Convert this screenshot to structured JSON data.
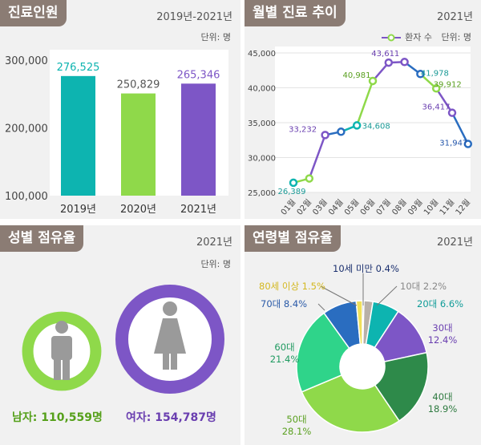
{
  "patients": {
    "title": "진료인원",
    "period": "2019년-2021년",
    "unit": "단위: 명",
    "chart_data": {
      "type": "bar",
      "categories": [
        "2019년",
        "2020년",
        "2021년"
      ],
      "values": [
        276525,
        250829,
        265346
      ],
      "value_labels": [
        "276,525",
        "250,829",
        "265,346"
      ],
      "colors": [
        "#0db4b0",
        "#8fd94a",
        "#7d56c6"
      ],
      "ylim": [
        100000,
        300000
      ],
      "yticks": [
        100000,
        200000,
        300000
      ],
      "ytick_labels": [
        "100,000",
        "200,000",
        "300,000"
      ]
    }
  },
  "monthly": {
    "title": "월별 진료 추이",
    "period": "2021년",
    "legend": "환자 수",
    "unit": "단위: 명",
    "chart_data": {
      "type": "line",
      "x": [
        "01월",
        "02월",
        "03월",
        "04월",
        "05월",
        "06월",
        "07월",
        "08월",
        "09월",
        "10월",
        "11월",
        "12월"
      ],
      "values": [
        26389,
        27000,
        33232,
        33700,
        34608,
        40981,
        43611,
        43700,
        41978,
        39912,
        36417,
        31947
      ],
      "data_labels": [
        {
          "i": 0,
          "text": "26,389",
          "color": "#1a9a96"
        },
        {
          "i": 2,
          "text": "33,232",
          "color": "#6a3fb0"
        },
        {
          "i": 4,
          "text": "34,608",
          "color": "#1a9a96"
        },
        {
          "i": 5,
          "text": "40,981",
          "color": "#5aa020"
        },
        {
          "i": 6,
          "text": "43,611",
          "color": "#6a3fb0"
        },
        {
          "i": 8,
          "text": "41,978",
          "color": "#1a9a96"
        },
        {
          "i": 9,
          "text": "39,912",
          "color": "#5aa020"
        },
        {
          "i": 10,
          "text": "36,417",
          "color": "#6a3fb0"
        },
        {
          "i": 11,
          "text": "31,947",
          "color": "#2255aa"
        }
      ],
      "point_colors": [
        "#0db4b0",
        "#8fd94a",
        "#7d56c6",
        "#2a6dc0",
        "#0db4b0",
        "#8fd94a",
        "#7d56c6",
        "#7d56c6",
        "#2a6dc0",
        "#8fd94a",
        "#7d56c6",
        "#2a6dc0"
      ],
      "ylim": [
        25000,
        45000
      ],
      "yticks": [
        25000,
        30000,
        35000,
        40000,
        45000
      ],
      "ytick_labels": [
        "25,000",
        "30,000",
        "35,000",
        "40,000",
        "45,000"
      ]
    }
  },
  "gender": {
    "title": "성별 점유율",
    "period": "2021년",
    "unit": "단위: 명",
    "male_label": "남자: 110,559명",
    "female_label": "여자: 154,787명",
    "male_value": 110559,
    "female_value": 154787,
    "male_color": "#8fd94a",
    "female_color": "#7d56c6"
  },
  "age": {
    "title": "연령별 점유율",
    "period": "2021년",
    "chart_data": {
      "type": "pie",
      "slices": [
        {
          "name": "10세 미만",
          "value": 0.4,
          "label": "10세 미만 0.4%",
          "color": "#1a2f6e",
          "text_color": "#1a2f6e"
        },
        {
          "name": "10대",
          "value": 2.2,
          "label": "10대 2.2%",
          "color": "#b8b0a8",
          "text_color": "#888888"
        },
        {
          "name": "20대",
          "value": 6.6,
          "label": "20대 6.6%",
          "color": "#0db4b0",
          "text_color": "#109c98"
        },
        {
          "name": "30대",
          "value": 12.4,
          "label": "30대 12.4%",
          "color": "#7d56c6",
          "text_color": "#6a3fb0"
        },
        {
          "name": "40대",
          "value": 18.9,
          "label": "40대 18.9%",
          "color": "#2e8a4a",
          "text_color": "#2e7a40"
        },
        {
          "name": "50대",
          "value": 28.1,
          "label": "50대 28.1%",
          "color": "#8fd94a",
          "text_color": "#5aa020"
        },
        {
          "name": "60대",
          "value": 21.4,
          "label": "60대 21.4%",
          "color": "#2fd48a",
          "text_color": "#1f9a60"
        },
        {
          "name": "70대",
          "value": 8.4,
          "label": "70대 8.4%",
          "color": "#2a6dc0",
          "text_color": "#2a5aa8"
        },
        {
          "name": "80세 이상",
          "value": 1.5,
          "label": "80세 이상 1.5%",
          "color": "#f0e05a",
          "text_color": "#d4b820"
        }
      ]
    }
  }
}
